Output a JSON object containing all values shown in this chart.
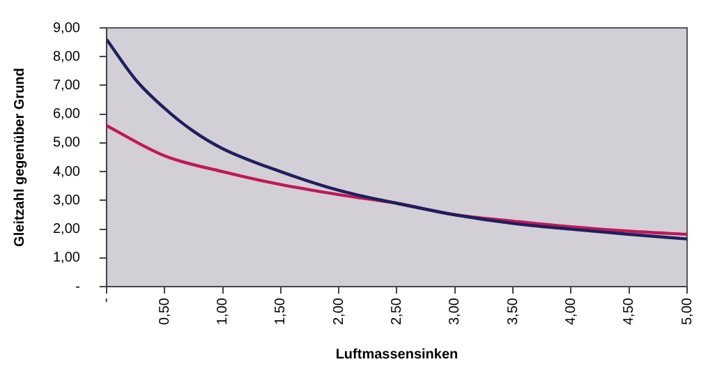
{
  "chart_data": {
    "type": "line",
    "xlabel": "Luftmassensinken",
    "ylabel": "Gleitzahl gegenüber Grund",
    "x": [
      0,
      0.25,
      0.5,
      0.75,
      1,
      1.5,
      2,
      2.5,
      3,
      3.5,
      4,
      4.5,
      5
    ],
    "series": [
      {
        "color": "#1f1f5e",
        "values": [
          8.6,
          7.2,
          6.2,
          5.4,
          4.8,
          4.0,
          3.35,
          2.9,
          2.5,
          2.2,
          2.0,
          1.82,
          1.66
        ]
      },
      {
        "color": "#c0185a",
        "x": [
          0,
          0.5,
          1,
          1.5,
          2,
          2.5,
          3,
          3.5,
          4,
          4.5,
          5
        ],
        "values": [
          5.6,
          4.55,
          4.0,
          3.55,
          3.2,
          2.9,
          2.5,
          2.28,
          2.08,
          1.93,
          1.82
        ]
      }
    ],
    "xlim": [
      0,
      5
    ],
    "xticks": [
      {
        "value": 0,
        "label": "-"
      },
      {
        "value": 0.5,
        "label": "0,50"
      },
      {
        "value": 1,
        "label": "1,00"
      },
      {
        "value": 1.5,
        "label": "1,50"
      },
      {
        "value": 2,
        "label": "2,00"
      },
      {
        "value": 2.5,
        "label": "2,50"
      },
      {
        "value": 3,
        "label": "3,00"
      },
      {
        "value": 3.5,
        "label": "3,50"
      },
      {
        "value": 4,
        "label": "4,00"
      },
      {
        "value": 4.5,
        "label": "4,50"
      },
      {
        "value": 5,
        "label": "5,00"
      }
    ],
    "ylim": [
      0,
      9
    ],
    "yticks": [
      {
        "value": 0,
        "label": "-"
      },
      {
        "value": 1,
        "label": "1,00"
      },
      {
        "value": 2,
        "label": "2,00"
      },
      {
        "value": 3,
        "label": "3,00"
      },
      {
        "value": 4,
        "label": "4,00"
      },
      {
        "value": 5,
        "label": "5,00"
      },
      {
        "value": 6,
        "label": "6,00"
      },
      {
        "value": 7,
        "label": "7,00"
      },
      {
        "value": 8,
        "label": "8,00"
      },
      {
        "value": 9,
        "label": "9,00"
      }
    ],
    "grid": false,
    "legend": false,
    "marker": "none",
    "line_style": "solid"
  }
}
